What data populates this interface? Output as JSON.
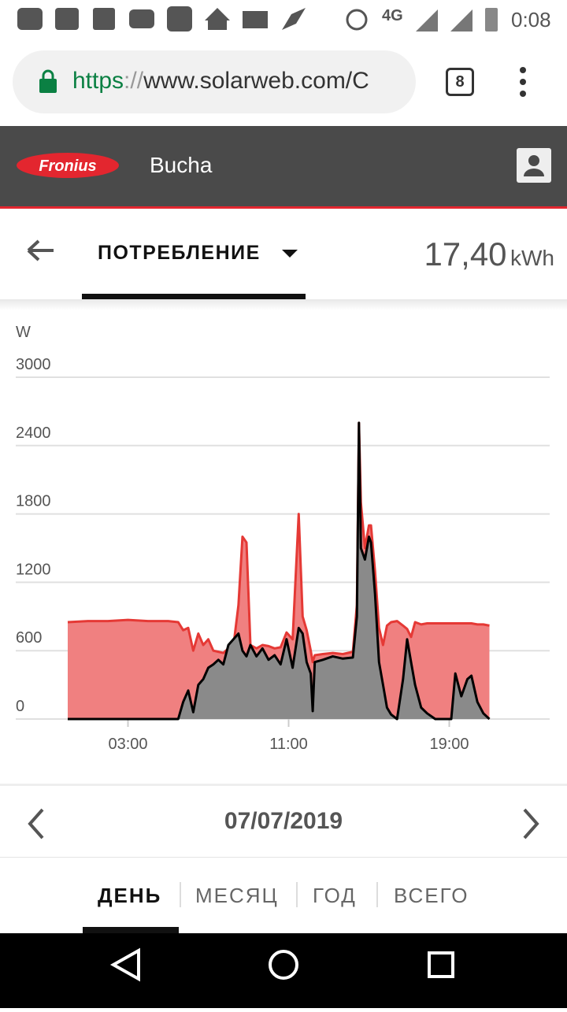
{
  "status_bar": {
    "network": "4G",
    "time": "0:08"
  },
  "browser": {
    "url_scheme": "https",
    "url_separator": "://",
    "url_rest": "www.solarweb.com/C",
    "tab_count": "8"
  },
  "header": {
    "brand": "Fronius",
    "site": "Bucha"
  },
  "toolbar": {
    "tab": "ПОТРЕБЛЕНИЕ",
    "total": "17,40",
    "unit": "kWh"
  },
  "chart_data": {
    "type": "area",
    "y_label": "W",
    "x": [
      0,
      1,
      2,
      3,
      4,
      5,
      5.5,
      5.75,
      6.0,
      6.25,
      6.5,
      6.75,
      7.0,
      7.25,
      7.5,
      7.75,
      8.0,
      8.25,
      8.5,
      8.7,
      8.9,
      9.1,
      9.4,
      9.7,
      10.0,
      10.3,
      10.6,
      10.9,
      11.2,
      11.5,
      11.7,
      11.9,
      12.1,
      12.2,
      12.3,
      12.7,
      13.2,
      13.7,
      14.2,
      14.4,
      14.5,
      14.6,
      14.8,
      15.0,
      15.1,
      15.3,
      15.5,
      15.7,
      15.9,
      16.1,
      16.4,
      16.7,
      16.9,
      17.1,
      17.3,
      17.6,
      17.9,
      18.3,
      18.8,
      19.1,
      19.3,
      19.6,
      19.9,
      20.1,
      20.4,
      20.7,
      21.0
    ],
    "series": [
      {
        "color": "#e53935",
        "area_color": "#f08080",
        "values": [
          850,
          860,
          860,
          870,
          860,
          860,
          850,
          780,
          800,
          600,
          750,
          650,
          700,
          600,
          590,
          580,
          620,
          640,
          1000,
          1600,
          1550,
          650,
          620,
          650,
          640,
          620,
          630,
          760,
          700,
          1800,
          900,
          780,
          600,
          500,
          560,
          570,
          580,
          570,
          590,
          1000,
          2600,
          1900,
          1500,
          1700,
          1700,
          1300,
          800,
          650,
          820,
          850,
          860,
          820,
          790,
          720,
          850,
          830,
          840,
          840,
          840,
          840,
          840,
          840,
          840,
          840,
          830,
          830,
          820
        ]
      },
      {
        "color": "#000000",
        "area_color": "#8a8a8a",
        "values": [
          0,
          0,
          0,
          0,
          0,
          0,
          0,
          150,
          250,
          60,
          300,
          350,
          450,
          480,
          520,
          480,
          650,
          700,
          750,
          600,
          550,
          650,
          550,
          620,
          520,
          560,
          480,
          700,
          450,
          800,
          750,
          500,
          400,
          70,
          500,
          520,
          550,
          530,
          540,
          900,
          2600,
          1500,
          1400,
          1600,
          1550,
          1100,
          500,
          300,
          100,
          40,
          0,
          350,
          700,
          500,
          300,
          100,
          50,
          0,
          0,
          0,
          400,
          200,
          350,
          380,
          150,
          50,
          0
        ]
      }
    ],
    "xlim": [
      0,
      24
    ],
    "xticks": [
      {
        "value": 3,
        "label": "03:00"
      },
      {
        "value": 11,
        "label": "11:00"
      },
      {
        "value": 19,
        "label": "19:00"
      }
    ],
    "ylim": [
      0,
      3000
    ],
    "yticks": [
      0,
      600,
      1200,
      1800,
      2400,
      3000
    ],
    "grid": true
  },
  "date_nav": {
    "date": "07/07/2019"
  },
  "periods": [
    "ДЕНЬ",
    "МЕСЯЦ",
    "ГОД",
    "ВСЕГО"
  ]
}
